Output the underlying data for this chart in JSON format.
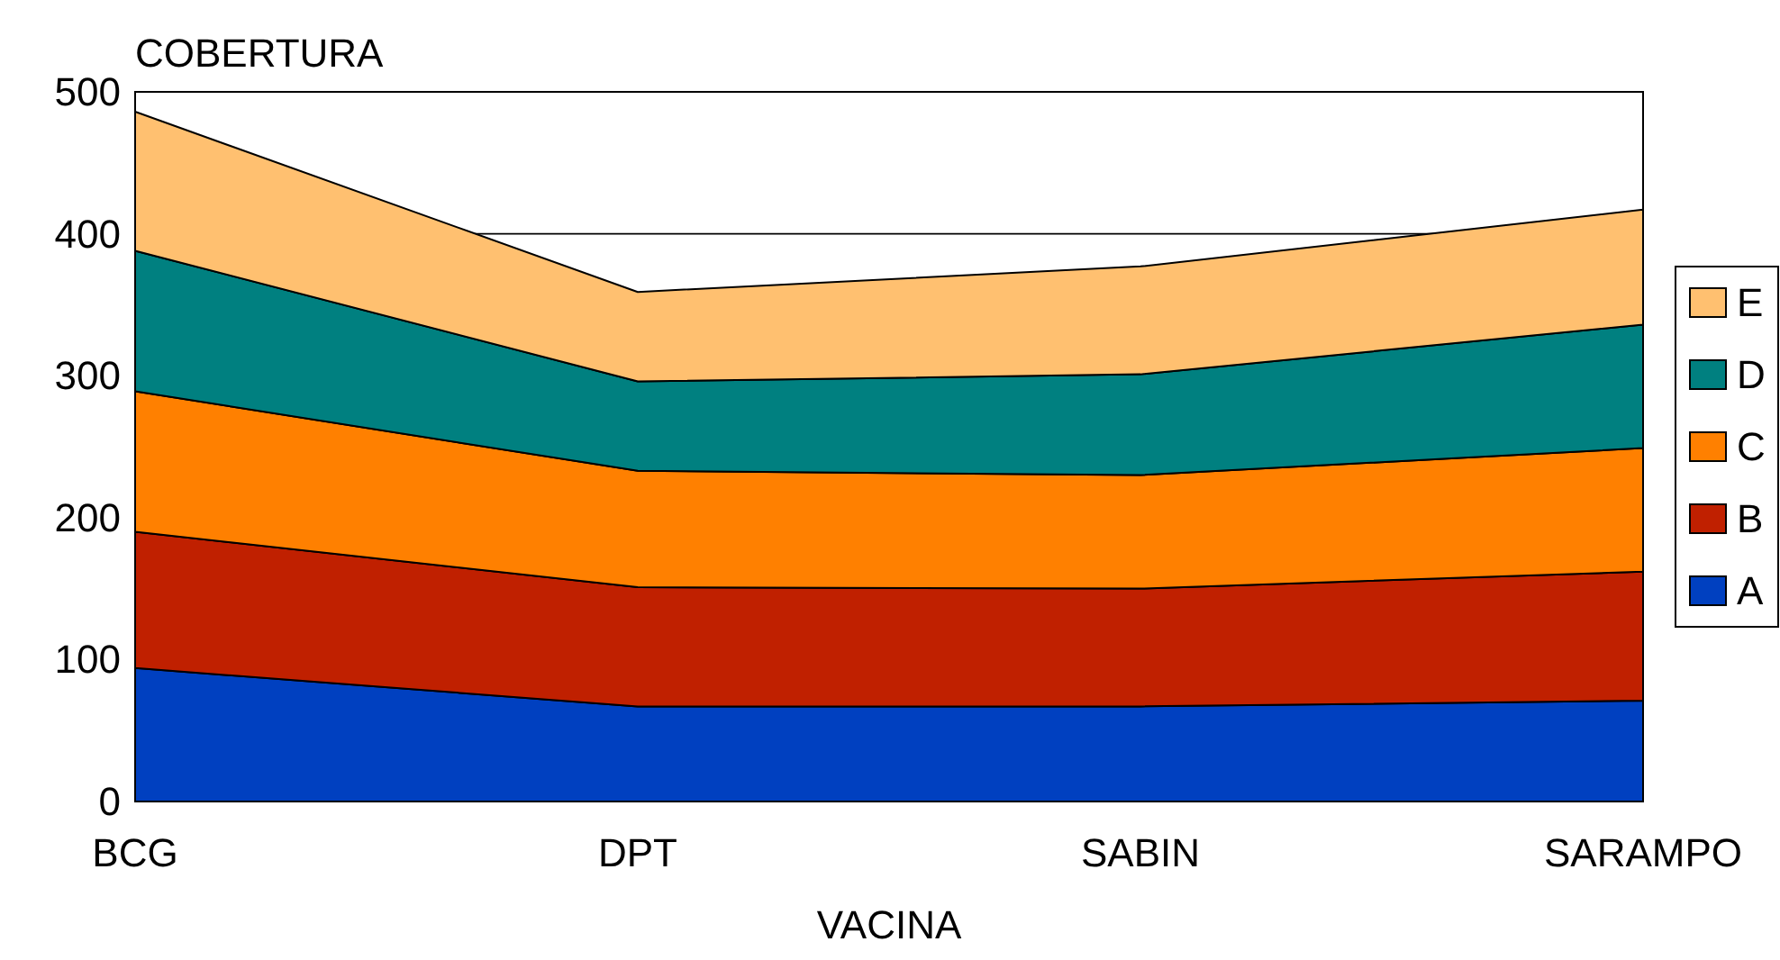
{
  "chart_data": {
    "type": "area",
    "stacked": true,
    "ylabel": "COBERTURA",
    "xlabel": "VACINA",
    "categories": [
      "BCG",
      "DPT",
      "SABIN",
      "SARAMPO"
    ],
    "series": [
      {
        "name": "A",
        "color": "#0040c0",
        "values": [
          94,
          67,
          67,
          71
        ]
      },
      {
        "name": "B",
        "color": "#c02000",
        "values": [
          96,
          84,
          83,
          91
        ]
      },
      {
        "name": "C",
        "color": "#ff8000",
        "values": [
          99,
          82,
          80,
          87
        ]
      },
      {
        "name": "D",
        "color": "#008080",
        "values": [
          99,
          63,
          71,
          87
        ]
      },
      {
        "name": "E",
        "color": "#ffc070",
        "values": [
          98,
          63,
          76,
          81
        ]
      }
    ],
    "ylim": [
      0,
      500
    ],
    "yticks": [
      0,
      100,
      200,
      300,
      400,
      500
    ],
    "grid": "y",
    "legend": "right"
  }
}
